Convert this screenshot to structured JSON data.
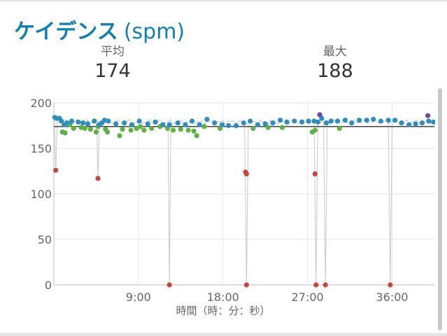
{
  "header": {
    "title": "ケイデンス",
    "unit": "(spm)"
  },
  "stats": [
    {
      "label": "平均",
      "value": "174"
    },
    {
      "label": "最大",
      "value": "188"
    }
  ],
  "chart_data": {
    "type": "scatter",
    "title": "",
    "xlabel": "時間（時：分：秒）",
    "ylabel": "",
    "x_unit": "minutes",
    "xlim": [
      0,
      40.5
    ],
    "ylim": [
      0,
      200
    ],
    "yticks": [
      0,
      50,
      100,
      150,
      200
    ],
    "xticks": [
      {
        "value": 9,
        "label": "9:00"
      },
      {
        "value": 18,
        "label": "18:00"
      },
      {
        "value": 27,
        "label": "27:00"
      },
      {
        "value": 36,
        "label": "36:00"
      }
    ],
    "grid": true,
    "average_line": 174,
    "colors": {
      "blue": "#2e8dbf",
      "green": "#5fb142",
      "red": "#c9453c",
      "purple": "#6a4c9c",
      "avg_line": "#444444",
      "trace": "#c8c8c8",
      "grid": "#e6e6e6"
    },
    "baseline": {
      "x_start": 0,
      "x_end": 40.5,
      "step": 0.2,
      "mean": 179,
      "amplitude": 3
    },
    "blue_points": [
      [
        0.1,
        184
      ],
      [
        0.3,
        183
      ],
      [
        0.6,
        183
      ],
      [
        0.8,
        180
      ],
      [
        1.1,
        176
      ],
      [
        1.4,
        178
      ],
      [
        1.9,
        180
      ],
      [
        2.6,
        179
      ],
      [
        3.1,
        178
      ],
      [
        3.6,
        177
      ],
      [
        4.3,
        180
      ],
      [
        4.8,
        176
      ],
      [
        5.1,
        178
      ],
      [
        5.4,
        181
      ],
      [
        5.8,
        180
      ],
      [
        6.6,
        177
      ],
      [
        7.5,
        178
      ],
      [
        8.3,
        176
      ],
      [
        9.1,
        180
      ],
      [
        10.0,
        177
      ],
      [
        10.8,
        179
      ],
      [
        11.6,
        176
      ],
      [
        12.3,
        176
      ],
      [
        13.2,
        178
      ],
      [
        14.0,
        176
      ],
      [
        14.7,
        180
      ],
      [
        15.5,
        176
      ],
      [
        16.3,
        182
      ],
      [
        17.1,
        178
      ],
      [
        17.9,
        176
      ],
      [
        18.6,
        175
      ],
      [
        19.4,
        175
      ],
      [
        20.2,
        178
      ],
      [
        20.9,
        180
      ],
      [
        21.7,
        176
      ],
      [
        22.5,
        177
      ],
      [
        23.3,
        178
      ],
      [
        24.1,
        181
      ],
      [
        24.8,
        179
      ],
      [
        25.6,
        180
      ],
      [
        26.4,
        179
      ],
      [
        27.1,
        180
      ],
      [
        27.7,
        180
      ],
      [
        28.1,
        179
      ],
      [
        28.5,
        183
      ],
      [
        29.0,
        178
      ],
      [
        29.5,
        180
      ],
      [
        30.2,
        180
      ],
      [
        31.0,
        181
      ],
      [
        31.7,
        178
      ],
      [
        32.5,
        181
      ],
      [
        33.3,
        181
      ],
      [
        34.0,
        182
      ],
      [
        34.8,
        180
      ],
      [
        35.6,
        181
      ],
      [
        36.3,
        181
      ],
      [
        37.0,
        178
      ],
      [
        37.8,
        176
      ],
      [
        38.5,
        177
      ],
      [
        39.2,
        178
      ],
      [
        39.9,
        180
      ],
      [
        40.4,
        179
      ]
    ],
    "green_points": [
      [
        0.9,
        168
      ],
      [
        1.2,
        167
      ],
      [
        1.7,
        176
      ],
      [
        2.1,
        172
      ],
      [
        2.9,
        173
      ],
      [
        3.3,
        172
      ],
      [
        3.9,
        171
      ],
      [
        4.5,
        168
      ],
      [
        4.7,
        174
      ],
      [
        5.5,
        171
      ],
      [
        5.7,
        168
      ],
      [
        7.0,
        164
      ],
      [
        7.3,
        171
      ],
      [
        8.2,
        170
      ],
      [
        8.8,
        172
      ],
      [
        9.2,
        174
      ],
      [
        9.6,
        170
      ],
      [
        10.4,
        172
      ],
      [
        11.3,
        174
      ],
      [
        12.1,
        172
      ],
      [
        12.7,
        170
      ],
      [
        13.5,
        171
      ],
      [
        14.3,
        170
      ],
      [
        14.9,
        169
      ],
      [
        15.2,
        164
      ],
      [
        16.0,
        174
      ],
      [
        17.7,
        172
      ],
      [
        21.2,
        172
      ],
      [
        22.8,
        173
      ],
      [
        24.3,
        173
      ],
      [
        27.5,
        168
      ],
      [
        27.8,
        170
      ],
      [
        30.4,
        172
      ]
    ],
    "red_points": [
      [
        0.2,
        126
      ],
      [
        4.7,
        117
      ],
      [
        12.3,
        0
      ],
      [
        20.4,
        124
      ],
      [
        20.5,
        122
      ],
      [
        20.5,
        0
      ],
      [
        27.8,
        122
      ],
      [
        27.9,
        0
      ],
      [
        28.9,
        0
      ],
      [
        35.8,
        0
      ]
    ],
    "purple_points": [
      [
        28.3,
        187
      ],
      [
        39.8,
        186
      ]
    ],
    "dip_traces": [
      [
        0.05,
        179,
        0.2,
        126,
        0.35,
        179
      ],
      [
        4.55,
        179,
        4.7,
        117,
        4.85,
        179
      ],
      [
        12.15,
        179,
        12.3,
        0,
        12.45,
        179
      ],
      [
        20.3,
        179,
        20.5,
        0,
        20.7,
        179
      ],
      [
        27.7,
        179,
        27.9,
        0,
        28.1,
        179
      ],
      [
        28.7,
        179,
        28.9,
        0,
        29.1,
        179
      ],
      [
        35.6,
        179,
        35.8,
        0,
        36.0,
        179
      ]
    ]
  }
}
